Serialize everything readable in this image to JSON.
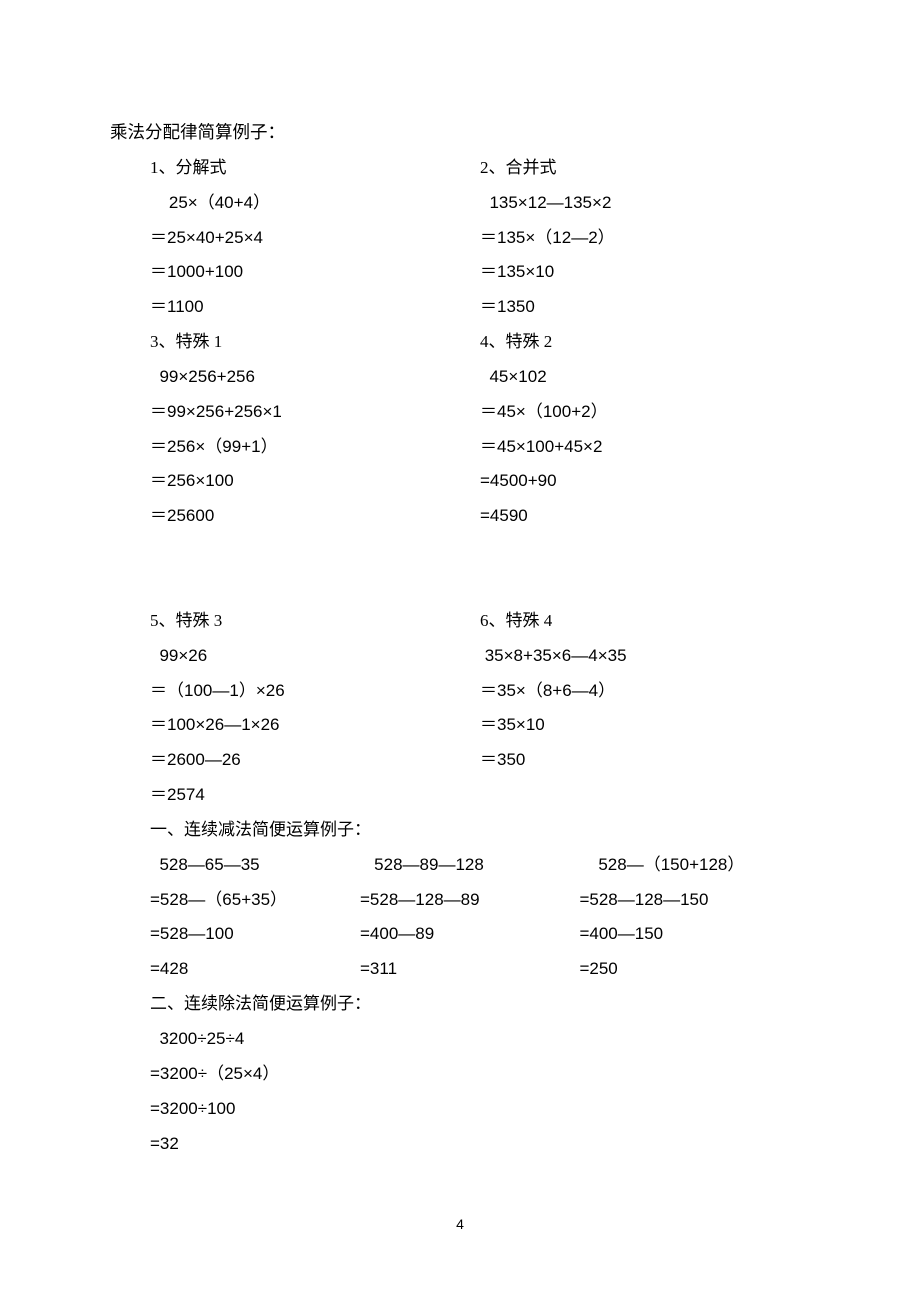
{
  "page_number": "4",
  "heading": "乘法分配律简算例子：",
  "pairs": [
    {
      "left": {
        "label": "1、分解式",
        "lines": [
          "    25×（40+4）",
          "＝25×40+25×4",
          "＝1000+100",
          "＝1100"
        ]
      },
      "right": {
        "label": "2、合并式",
        "lines": [
          "  135×12—135×2",
          "＝135×（12—2）",
          "＝135×10",
          "＝1350"
        ]
      }
    },
    {
      "left": {
        "label": "3、特殊 1",
        "lines": [
          "  99×256+256",
          "＝99×256+256×1",
          "＝256×（99+1）",
          "＝256×100",
          "＝25600"
        ]
      },
      "right": {
        "label": "4、特殊 2",
        "lines": [
          "  45×102",
          "＝45×（100+2）",
          "＝45×100+45×2",
          "=4500+90",
          "=4590"
        ]
      }
    }
  ],
  "pairs2": [
    {
      "left": {
        "label": "5、特殊 3",
        "lines": [
          "  99×26",
          "＝（100—1）×26",
          "＝100×26—1×26",
          "＝2600—26",
          "＝2574"
        ]
      },
      "right": {
        "label": "6、特殊 4",
        "lines": [
          " 35×8+35×6—4×35",
          "＝35×（8+6—4）",
          "＝35×10",
          "＝350"
        ]
      }
    }
  ],
  "sub_heading": "一、连续减法简便运算例子：",
  "triple": {
    "col1": [
      "  528—65—35",
      "=528—（65+35）",
      "=528—100",
      "=428"
    ],
    "col2": [
      "   528—89—128",
      "=528—128—89",
      "=400—89",
      "=311"
    ],
    "col3": [
      "      528—（150+128）",
      "  =528—128—150",
      "  =400—150",
      "  =250"
    ]
  },
  "div_heading": "二、连续除法简便运算例子：",
  "div_lines": [
    "  3200÷25÷4",
    "=3200÷（25×4）",
    "=3200÷100",
    "=32"
  ]
}
